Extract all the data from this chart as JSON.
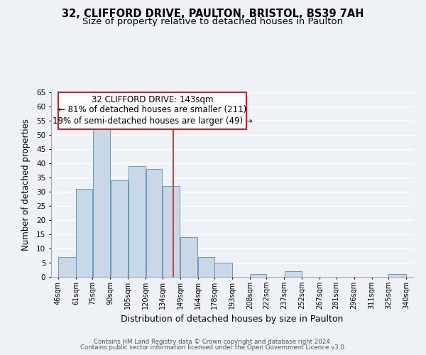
{
  "title_line1": "32, CLIFFORD DRIVE, PAULTON, BRISTOL, BS39 7AH",
  "title_line2": "Size of property relative to detached houses in Paulton",
  "xlabel": "Distribution of detached houses by size in Paulton",
  "ylabel": "Number of detached properties",
  "bar_left_edges": [
    46,
    61,
    75,
    90,
    105,
    120,
    134,
    149,
    164,
    178,
    193,
    208,
    222,
    237,
    252,
    267,
    281,
    296,
    311,
    325
  ],
  "bar_heights": [
    7,
    31,
    52,
    34,
    39,
    38,
    32,
    14,
    7,
    5,
    0,
    1,
    0,
    2,
    0,
    0,
    0,
    0,
    0,
    1
  ],
  "bar_widths": [
    15,
    14,
    15,
    15,
    15,
    14,
    15,
    15,
    14,
    15,
    15,
    14,
    15,
    15,
    15,
    14,
    15,
    15,
    14,
    15
  ],
  "tick_labels": [
    "46sqm",
    "61sqm",
    "75sqm",
    "90sqm",
    "105sqm",
    "120sqm",
    "134sqm",
    "149sqm",
    "164sqm",
    "178sqm",
    "193sqm",
    "208sqm",
    "222sqm",
    "237sqm",
    "252sqm",
    "267sqm",
    "281sqm",
    "296sqm",
    "311sqm",
    "325sqm",
    "340sqm"
  ],
  "tick_positions": [
    46,
    61,
    75,
    90,
    105,
    120,
    134,
    149,
    164,
    178,
    193,
    208,
    222,
    237,
    252,
    267,
    281,
    296,
    311,
    325,
    340
  ],
  "bar_color": "#c8d8e8",
  "bar_edge_color": "#6699bb",
  "reference_line_x": 143,
  "ylim": [
    0,
    65
  ],
  "yticks": [
    0,
    5,
    10,
    15,
    20,
    25,
    30,
    35,
    40,
    45,
    50,
    55,
    60,
    65
  ],
  "annotation_title": "32 CLIFFORD DRIVE: 143sqm",
  "annotation_line1": "← 81% of detached houses are smaller (211)",
  "annotation_line2": "19% of semi-detached houses are larger (49) →",
  "footer_line1": "Contains HM Land Registry data © Crown copyright and database right 2024.",
  "footer_line2": "Contains public sector information licensed under the Open Government Licence v3.0.",
  "background_color": "#eef2f7",
  "grid_color": "#ffffff",
  "title_fontsize": 10.5,
  "subtitle_fontsize": 9.5,
  "ann_fontsize": 8.5
}
